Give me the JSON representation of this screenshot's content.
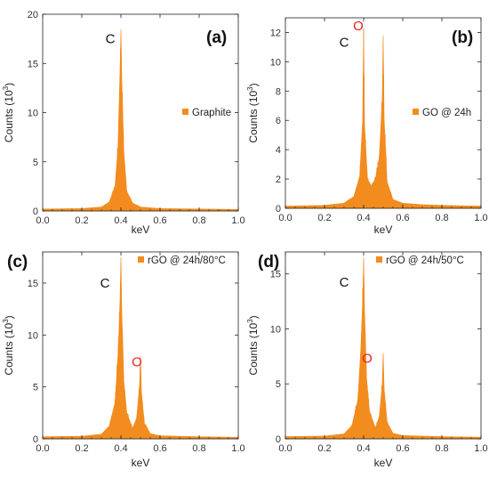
{
  "figure": {
    "style": {
      "fill_color": "#f28c1e",
      "axis_color": "#222222",
      "peak_label_dark": "#111111",
      "peak_label_red": "#e3201b"
    },
    "panels": [
      {
        "id": "a",
        "panel_label": "(a)",
        "legend": "Graphite",
        "ylabel": "Counts (10",
        "ylabel_sup": "3",
        "ylabel_close": ")",
        "xlabel": "keV"
      },
      {
        "id": "b",
        "panel_label": "(b)",
        "legend": "GO @ 24h",
        "ylabel": "Counts (10",
        "ylabel_sup": "3",
        "ylabel_close": ")",
        "xlabel": "keV"
      },
      {
        "id": "c",
        "panel_label": "(c)",
        "legend": "rGO @ 24h/80°C",
        "ylabel": "Counts (10",
        "ylabel_sup": "3",
        "ylabel_close": ")",
        "xlabel": "keV"
      },
      {
        "id": "d",
        "panel_label": "(d)",
        "legend": "rGO @ 24h/50°C",
        "ylabel": "Counts (10",
        "ylabel_sup": "3",
        "ylabel_close": ")",
        "xlabel": "keV"
      }
    ]
  },
  "chart_data": [
    {
      "type": "area",
      "title": "(a)",
      "xlabel": "keV",
      "ylabel": "Counts (10^3)",
      "xlim": [
        0,
        1.0
      ],
      "ylim": [
        0,
        20
      ],
      "xticks": [
        0.0,
        0.2,
        0.4,
        0.6,
        0.8,
        1.0
      ],
      "yticks": [
        0,
        5,
        10,
        15,
        20
      ],
      "legend": "Graphite",
      "legend_position": "center-right",
      "series": [
        {
          "name": "Graphite",
          "x": [
            0.0,
            0.2,
            0.3,
            0.34,
            0.37,
            0.385,
            0.395,
            0.4,
            0.405,
            0.415,
            0.43,
            0.46,
            0.5,
            0.6,
            0.8,
            1.0
          ],
          "y": [
            0.2,
            0.25,
            0.4,
            0.9,
            2.5,
            6.5,
            14.0,
            18.5,
            13.0,
            6.0,
            2.0,
            0.8,
            0.4,
            0.25,
            0.2,
            0.15
          ]
        }
      ],
      "annotations": [
        {
          "text": "C",
          "x": 0.4,
          "color": "#111111"
        }
      ]
    },
    {
      "type": "area",
      "title": "(b)",
      "xlabel": "keV",
      "ylabel": "Counts (10^3)",
      "xlim": [
        0,
        1.0
      ],
      "ylim": [
        0,
        13
      ],
      "xticks": [
        0.0,
        0.2,
        0.4,
        0.6,
        0.8,
        1.0
      ],
      "yticks": [
        0,
        2,
        4,
        6,
        8,
        10,
        12
      ],
      "legend": "GO @ 24h",
      "legend_position": "center-right",
      "series": [
        {
          "name": "GO @ 24h",
          "x": [
            0.0,
            0.2,
            0.3,
            0.35,
            0.38,
            0.395,
            0.4,
            0.405,
            0.42,
            0.44,
            0.46,
            0.48,
            0.495,
            0.5,
            0.505,
            0.52,
            0.55,
            0.6,
            0.7,
            0.8,
            1.0
          ],
          "y": [
            0.15,
            0.2,
            0.35,
            0.8,
            2.2,
            6.0,
            12.3,
            5.5,
            2.0,
            1.5,
            2.0,
            3.5,
            7.5,
            11.8,
            6.0,
            1.8,
            0.6,
            0.35,
            0.25,
            0.2,
            0.15
          ]
        }
      ],
      "annotations": [
        {
          "text": "C",
          "x": 0.4,
          "color": "#111111"
        },
        {
          "text": "O",
          "x": 0.5,
          "color": "#e3201b"
        }
      ]
    },
    {
      "type": "area",
      "title": "(c)",
      "xlabel": "keV",
      "ylabel": "Counts (10^3)",
      "xlim": [
        0,
        1.0
      ],
      "ylim": [
        0,
        18
      ],
      "xticks": [
        0.0,
        0.2,
        0.4,
        0.6,
        0.8,
        1.0
      ],
      "yticks": [
        0,
        5,
        10,
        15
      ],
      "legend": "rGO @ 24h/80°C",
      "legend_position": "top-right",
      "series": [
        {
          "name": "rGO @ 24h/80°C",
          "x": [
            0.0,
            0.2,
            0.3,
            0.34,
            0.37,
            0.385,
            0.395,
            0.4,
            0.405,
            0.415,
            0.43,
            0.46,
            0.48,
            0.495,
            0.5,
            0.505,
            0.52,
            0.55,
            0.6,
            0.8,
            1.0
          ],
          "y": [
            0.2,
            0.25,
            0.45,
            1.2,
            3.5,
            8.0,
            13.0,
            17.5,
            12.0,
            5.5,
            2.5,
            1.0,
            2.0,
            5.0,
            8.0,
            4.5,
            1.5,
            0.5,
            0.3,
            0.2,
            0.15
          ]
        }
      ],
      "annotations": [
        {
          "text": "C",
          "x": 0.4,
          "color": "#111111"
        },
        {
          "text": "O",
          "x": 0.5,
          "color": "#e3201b"
        }
      ]
    },
    {
      "type": "area",
      "title": "(d)",
      "xlabel": "keV",
      "ylabel": "Counts (10^3)",
      "xlim": [
        0,
        1.0
      ],
      "ylim": [
        0,
        17
      ],
      "xticks": [
        0.0,
        0.2,
        0.4,
        0.6,
        0.8,
        1.0
      ],
      "yticks": [
        0,
        5,
        10,
        15
      ],
      "legend": "rGO @ 24h/50°C",
      "legend_position": "top-right",
      "series": [
        {
          "name": "rGO @ 24h/50°C",
          "x": [
            0.0,
            0.2,
            0.3,
            0.34,
            0.37,
            0.385,
            0.395,
            0.4,
            0.405,
            0.415,
            0.43,
            0.46,
            0.48,
            0.495,
            0.5,
            0.505,
            0.52,
            0.55,
            0.6,
            0.8,
            1.0
          ],
          "y": [
            0.2,
            0.25,
            0.45,
            1.2,
            3.5,
            8.0,
            12.5,
            16.5,
            11.5,
            5.5,
            2.5,
            1.0,
            2.0,
            5.0,
            7.8,
            4.5,
            1.5,
            0.5,
            0.3,
            0.2,
            0.15
          ]
        }
      ],
      "annotations": [
        {
          "text": "C",
          "x": 0.4,
          "color": "#111111"
        },
        {
          "text": "O",
          "x": 0.5,
          "color": "#e3201b"
        }
      ]
    }
  ]
}
